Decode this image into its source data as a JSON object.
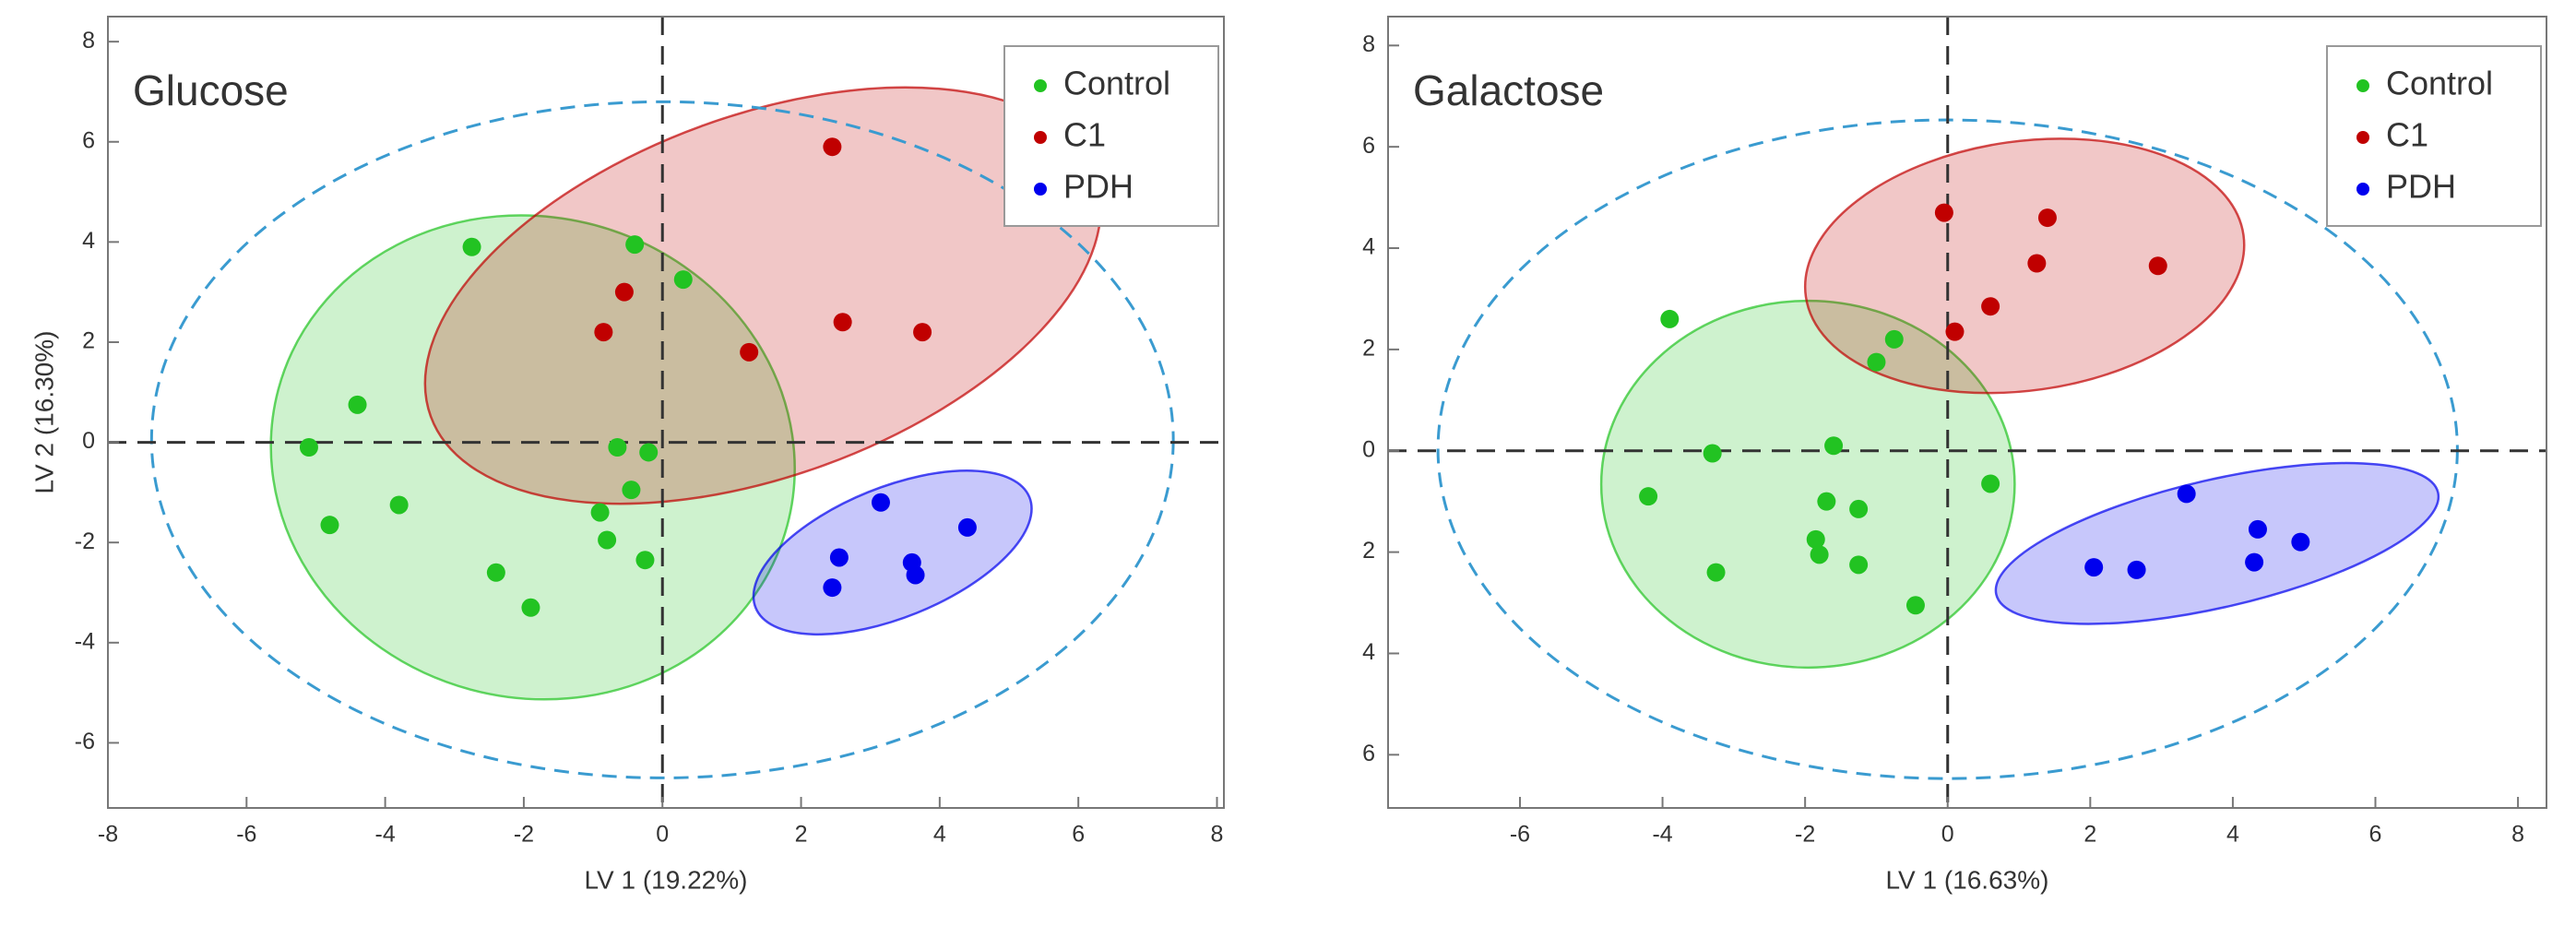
{
  "chart_data": [
    {
      "type": "scatter",
      "title": "Glucose",
      "xlabel": "LV 1 (19.22%)",
      "ylabel": "LV 2 (16.30%)",
      "xlim": [
        -8,
        8.1
      ],
      "ylim": [
        -7.3,
        8.5
      ],
      "xticks": [
        -8,
        -6,
        -4,
        -2,
        0,
        2,
        4,
        6,
        8
      ],
      "yticks": [
        -6,
        -4,
        -2,
        0,
        2,
        4,
        6,
        8
      ],
      "legend": "upper right",
      "confidence_ellipse": {
        "cx": 0,
        "cy": 0.05,
        "rx": 7.37,
        "ry": 6.75
      },
      "series": [
        {
          "name": "Control",
          "color": "#22c322",
          "x": [
            -2.75,
            -0.4,
            0.3,
            -4.4,
            -5.1,
            -0.65,
            -0.2,
            -3.8,
            -0.45,
            -4.8,
            -0.9,
            -0.8,
            -0.25,
            -2.4,
            -1.9
          ],
          "values": [
            3.9,
            3.95,
            3.25,
            0.75,
            -0.1,
            -0.1,
            -0.2,
            -1.25,
            -0.95,
            -1.65,
            -1.4,
            -1.95,
            -2.35,
            -2.6,
            -3.3
          ],
          "ellipse": {
            "cx": -1.87,
            "cy": -0.3,
            "rx": 3.8,
            "ry": 4.8,
            "angle": 15
          }
        },
        {
          "name": "C1",
          "color": "#c00000",
          "x": [
            2.45,
            -0.55,
            -0.85,
            2.6,
            3.75,
            1.25
          ],
          "values": [
            5.9,
            3.0,
            2.2,
            2.4,
            2.2,
            1.8
          ],
          "ellipse": {
            "cx": 1.45,
            "cy": 2.93,
            "rx": 5.1,
            "ry": 3.6,
            "angle": -20
          }
        },
        {
          "name": "PDH",
          "color": "#0000ee",
          "x": [
            3.15,
            4.4,
            2.55,
            3.6,
            3.65,
            2.45
          ],
          "values": [
            -1.2,
            -1.7,
            -2.3,
            -2.4,
            -2.65,
            -2.9
          ],
          "ellipse": {
            "cx": 3.32,
            "cy": -2.2,
            "rx": 2.13,
            "ry": 1.3,
            "angle": -22
          }
        }
      ]
    },
    {
      "type": "scatter",
      "title": "Galactose",
      "xlabel": "LV 1 (16.63%)",
      "xlim": [
        -7.85,
        8.4
      ],
      "ylim": [
        -7.05,
        8.57
      ],
      "xticks": [
        -6,
        -4,
        -2,
        0,
        2,
        4,
        6,
        8
      ],
      "yticks": [
        {
          "value": -6,
          "label": "6"
        },
        {
          "value": -4,
          "label": "4"
        },
        {
          "value": -2,
          "label": "2"
        },
        0,
        2,
        4,
        6,
        8
      ],
      "legend": "upper right",
      "confidence_ellipse": {
        "cx": 0,
        "cy": 0.03,
        "rx": 7.15,
        "ry": 6.5
      },
      "series": [
        {
          "name": "Control",
          "color": "#22c322",
          "x": [
            -3.9,
            -0.75,
            -1.0,
            -1.6,
            -3.3,
            0.6,
            -4.2,
            -1.7,
            -1.25,
            -1.85,
            -1.8,
            -1.25,
            -3.25,
            -0.45
          ],
          "values": [
            2.6,
            2.2,
            1.75,
            0.1,
            -0.05,
            -0.65,
            -0.9,
            -1.0,
            -1.15,
            -1.75,
            -2.05,
            -2.25,
            -2.4,
            -3.05
          ],
          "ellipse": {
            "cx": -1.96,
            "cy": -0.66,
            "rx": 2.9,
            "ry": 3.62,
            "angle": 0
          }
        },
        {
          "name": "C1",
          "color": "#c00000",
          "x": [
            -0.05,
            1.4,
            1.25,
            2.95,
            0.6,
            0.1
          ],
          "values": [
            4.7,
            4.6,
            3.7,
            3.65,
            2.85,
            2.35
          ],
          "ellipse": {
            "cx": 1.08,
            "cy": 3.65,
            "rx": 3.1,
            "ry": 2.46,
            "angle": -8
          }
        },
        {
          "name": "PDH",
          "color": "#0000ee",
          "x": [
            3.35,
            4.35,
            4.95,
            4.3,
            2.05,
            2.65
          ],
          "values": [
            -0.85,
            -1.55,
            -1.8,
            -2.2,
            -2.3,
            -2.35
          ],
          "ellipse": {
            "cx": 3.78,
            "cy": -1.83,
            "rx": 3.18,
            "ry": 1.26,
            "angle": -13
          }
        }
      ]
    }
  ]
}
